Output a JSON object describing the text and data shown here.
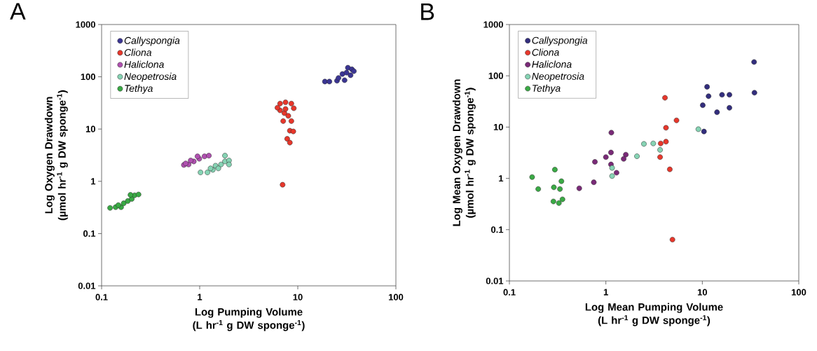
{
  "chart_data": [
    {
      "type": "scatter",
      "title": "A",
      "xlabel": "Log Pumping Volume (L hr$^{-1}$ g DW sponge$^{-1}$)",
      "ylabel": "Log Oxygen Drawdown (µmol hr$^{-1}$ g DW sponge$^{-1}$)",
      "log": "xy",
      "xlim": [
        0.1,
        100
      ],
      "ylim": [
        0.01,
        1000
      ],
      "xticks": [
        0.1,
        1,
        10,
        100
      ],
      "yticks": [
        0.01,
        0.1,
        1,
        10,
        100,
        1000
      ],
      "legend": "top left",
      "marker": "circle",
      "grid": false,
      "series": [
        {
          "name": "Callyspongia",
          "color": "#3b3594",
          "x": [
            18.9,
            21.0,
            25.1,
            28.5,
            31.4,
            32.4,
            35.6,
            37.3,
            34.5,
            30.0,
            26.0
          ],
          "values": [
            81,
            81,
            84,
            113,
            120,
            149,
            139,
            128,
            107,
            86,
            95
          ]
        },
        {
          "name": "Cliona",
          "color": "#e8372b",
          "x": [
            6.6,
            7.5,
            8.6,
            9.1,
            6.6,
            7.3,
            8.0,
            7.1,
            8.6,
            8.3,
            9.0,
            7.8,
            8.3,
            7.0,
            6.2,
            7.5
          ],
          "values": [
            30.7,
            32.5,
            30.7,
            25,
            22.8,
            20.2,
            17.9,
            14.2,
            14.2,
            9.3,
            9.0,
            6.5,
            5.5,
            0.86,
            25.6,
            24.2
          ]
        },
        {
          "name": "Haliclona",
          "color": "#b050b0",
          "x": [
            0.69,
            0.77,
            0.87,
            0.99,
            1.12,
            1.24,
            0.95,
            0.81,
            0.72
          ],
          "values": [
            2.06,
            2.1,
            2.4,
            2.7,
            3.0,
            3.1,
            3.0,
            2.5,
            2.2
          ]
        },
        {
          "name": "Neopetrosia",
          "color": "#86d4b4",
          "x": [
            1.02,
            1.2,
            1.36,
            1.45,
            1.65,
            1.81,
            1.81,
            1.99,
            1.99,
            1.29,
            1.55
          ],
          "values": [
            1.48,
            1.48,
            1.66,
            1.99,
            2.1,
            2.4,
            3.1,
            2.5,
            2.1,
            1.77,
            1.77
          ]
        },
        {
          "name": "Tethya",
          "color": "#3aaa45",
          "x": [
            0.122,
            0.139,
            0.158,
            0.168,
            0.185,
            0.203,
            0.217,
            0.238,
            0.197,
            0.148
          ],
          "values": [
            0.31,
            0.32,
            0.32,
            0.38,
            0.42,
            0.46,
            0.54,
            0.56,
            0.55,
            0.35
          ]
        }
      ]
    },
    {
      "type": "scatter",
      "title": "B",
      "xlabel": "Log Mean Pumping Volume (L hr$^{-1}$ g DW sponge$^{-1}$)",
      "ylabel": "Log Mean Oxygen Drawdown (µmol hr$^{-1}$ g DW sponge$^{-1}$)",
      "log": "xy",
      "xlim": [
        0.1,
        100
      ],
      "ylim": [
        0.01,
        1000
      ],
      "xticks": [
        0.1,
        1,
        10,
        100
      ],
      "yticks": [
        0.01,
        0.1,
        1,
        10,
        100,
        1000
      ],
      "legend": "top left",
      "marker": "circle",
      "grid": false,
      "series": [
        {
          "name": "Callyspongia",
          "color": "#332e7e",
          "x": [
            34.4,
            34.7,
            11.2,
            11.6,
            16.0,
            19.1,
            19.1,
            14.2,
            10.1,
            10.4
          ],
          "values": [
            186,
            46.8,
            61,
            40,
            42.7,
            42.7,
            23.8,
            19.5,
            26.7,
            8.2
          ]
        },
        {
          "name": "Cliona",
          "color": "#e8372b",
          "x": [
            4.1,
            5.4,
            4.2,
            4.2,
            3.7,
            3.65,
            4.6,
            4.9
          ],
          "values": [
            37.3,
            13.5,
            9.7,
            5.2,
            4.8,
            2.6,
            1.5,
            0.064
          ]
        },
        {
          "name": "Haliclona",
          "color": "#7a2a78",
          "x": [
            1.14,
            1.13,
            1.0,
            1.61,
            1.53,
            0.77,
            1.13,
            1.29,
            0.75,
            0.53
          ],
          "values": [
            7.8,
            3.2,
            2.6,
            2.9,
            2.4,
            2.1,
            1.87,
            1.29,
            0.84,
            0.64
          ]
        },
        {
          "name": "Neopetrosia",
          "color": "#86d4b4",
          "x": [
            9.1,
            2.48,
            3.1,
            3.65,
            2.1,
            1.16,
            1.16
          ],
          "values": [
            9.1,
            4.7,
            4.8,
            3.6,
            2.7,
            1.6,
            1.11
          ]
        },
        {
          "name": "Tethya",
          "color": "#3aaa45",
          "x": [
            0.172,
            0.199,
            0.296,
            0.289,
            0.334,
            0.346,
            0.286,
            0.326,
            0.355
          ],
          "values": [
            1.06,
            0.62,
            1.48,
            0.67,
            0.62,
            0.88,
            0.355,
            0.33,
            0.39
          ]
        }
      ]
    }
  ]
}
